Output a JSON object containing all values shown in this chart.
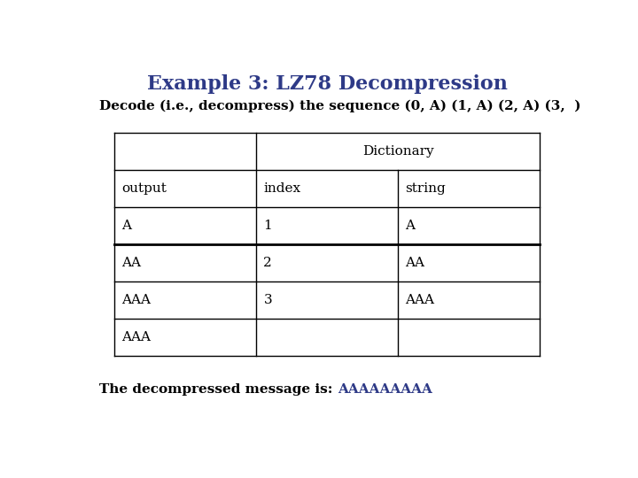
{
  "title": "Example 3: LZ78 Decompression",
  "title_color": "#2E3A87",
  "title_fontsize": 16,
  "subtitle": "Decode (i.e., decompress) the sequence (0, A) (1, A) (2, A) (3,  )",
  "subtitle_fontsize": 11,
  "subtitle_color": "#000000",
  "header_row_label": "Dictionary",
  "subheader_row": [
    "output",
    "index",
    "string"
  ],
  "data_rows": [
    [
      "A",
      "1",
      "A"
    ],
    [
      "AA",
      "2",
      "AA"
    ],
    [
      "AAA",
      "3",
      "AAA"
    ],
    [
      "AAA",
      "",
      ""
    ]
  ],
  "thick_border_after_row": 1,
  "cell_font_color": "#000000",
  "cell_fontsize": 11,
  "header_fontsize": 11,
  "footer_text_prefix": "The decompressed message is: ",
  "footer_text_value": "AAAAAAAAA",
  "footer_fontsize": 11,
  "footer_color": "#000000",
  "footer_value_color": "#2E3A87",
  "background_color": "#ffffff"
}
